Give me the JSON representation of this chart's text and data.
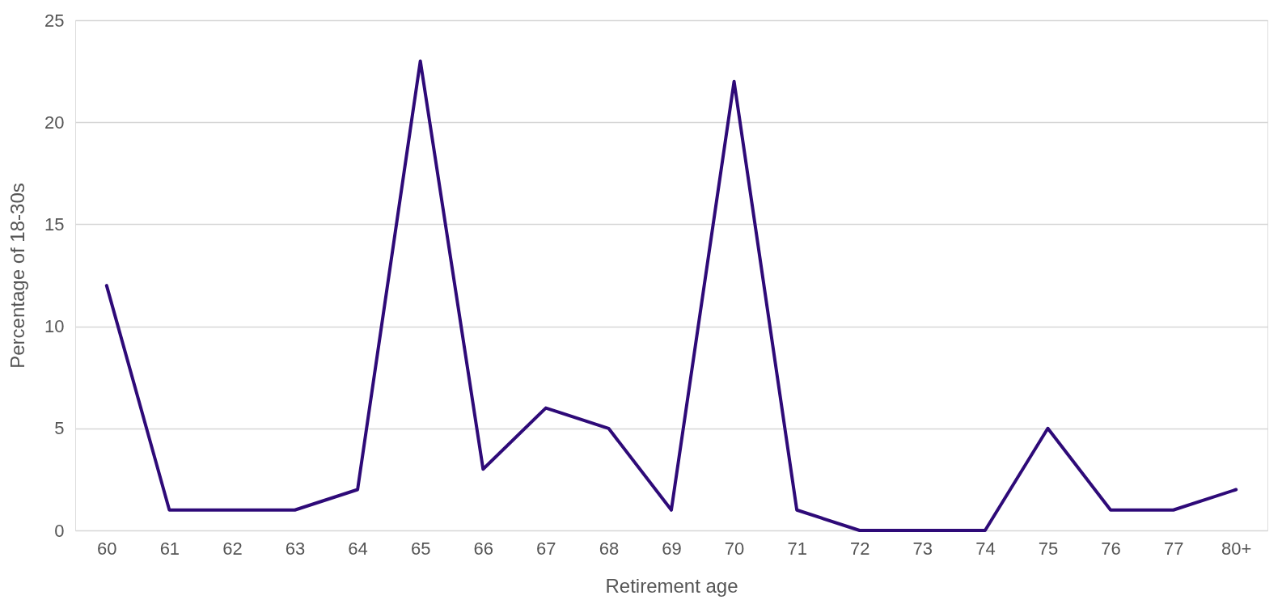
{
  "chart_data": {
    "type": "line",
    "xlabel": "Retirement age",
    "ylabel": "Percentage of 18-30s",
    "categories": [
      "60",
      "61",
      "62",
      "63",
      "64",
      "65",
      "66",
      "67",
      "68",
      "69",
      "70",
      "71",
      "72",
      "73",
      "74",
      "75",
      "76",
      "77",
      "80+"
    ],
    "series": [
      {
        "color": "#2e0a78",
        "values": [
          12,
          1,
          1,
          1,
          2,
          23,
          3,
          6,
          5,
          1,
          22,
          1,
          0,
          0,
          0,
          5,
          1,
          1,
          2
        ]
      }
    ],
    "ylim": [
      0,
      25
    ],
    "yticks": [
      0,
      5,
      10,
      15,
      20,
      25
    ],
    "grid": "y",
    "marker": "none",
    "line_style": "solid"
  }
}
